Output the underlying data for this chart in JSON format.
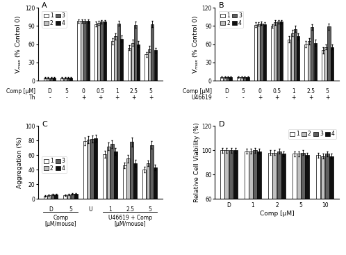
{
  "panel_A": {
    "title": "A",
    "ylabel": "V$_{max}$ (% Control 0)",
    "ylim": [
      0,
      120
    ],
    "yticks": [
      0,
      30,
      60,
      90,
      120
    ],
    "groups": [
      "D",
      "5",
      "0",
      "0.5",
      "1",
      "2.5",
      "5"
    ],
    "xlabel_top": "Comp [μM]",
    "xlabel_bot": "Th",
    "xlabel_bot_vals": [
      "-",
      "-",
      "+",
      "+",
      "+",
      "+",
      "+"
    ],
    "bar_data": [
      [
        5,
        5,
        98,
        93,
        65,
        54,
        43
      ],
      [
        5,
        5,
        98,
        95,
        73,
        62,
        52
      ],
      [
        5,
        5,
        98,
        97,
        94,
        92,
        93
      ],
      [
        5,
        5,
        98,
        97,
        69,
        60,
        50
      ]
    ],
    "bar_errors": [
      [
        1,
        1,
        3,
        4,
        5,
        4,
        4
      ],
      [
        1,
        1,
        3,
        3,
        5,
        5,
        5
      ],
      [
        1,
        1,
        3,
        3,
        4,
        5,
        5
      ],
      [
        1,
        1,
        3,
        3,
        5,
        5,
        4
      ]
    ]
  },
  "panel_B": {
    "title": "B",
    "ylabel": "V$_{max}$ (% Control 0)",
    "ylim": [
      0,
      120
    ],
    "yticks": [
      0,
      30,
      60,
      90,
      120
    ],
    "groups": [
      "D",
      "5",
      "0",
      "0.5",
      "1",
      "2.5",
      "5"
    ],
    "xlabel_top": "Comp [μM]",
    "xlabel_bot": "U46619",
    "xlabel_bot_vals": [
      "-",
      "-",
      "+",
      "+",
      "+",
      "+",
      "+"
    ],
    "bar_data": [
      [
        6,
        6,
        92,
        90,
        68,
        60,
        50
      ],
      [
        6,
        6,
        93,
        96,
        78,
        65,
        55
      ],
      [
        6,
        6,
        94,
        97,
        85,
        88,
        89
      ],
      [
        6,
        6,
        93,
        97,
        73,
        62,
        55
      ]
    ],
    "bar_errors": [
      [
        1,
        1,
        4,
        3,
        5,
        5,
        5
      ],
      [
        1,
        1,
        3,
        4,
        5,
        5,
        4
      ],
      [
        1,
        1,
        3,
        3,
        5,
        5,
        5
      ],
      [
        1,
        1,
        3,
        3,
        5,
        5,
        4
      ]
    ]
  },
  "panel_C": {
    "title": "C",
    "ylabel": "Aggregation (%)",
    "ylim": [
      0,
      100
    ],
    "yticks": [
      0,
      20,
      40,
      60,
      80,
      100
    ],
    "groups": [
      "D",
      "5",
      "U",
      "1",
      "2.5",
      "5"
    ],
    "bar_data": [
      [
        4,
        5,
        79,
        61,
        46,
        40
      ],
      [
        5,
        6,
        81,
        72,
        55,
        49
      ],
      [
        6,
        7,
        82,
        75,
        78,
        74
      ],
      [
        6,
        7,
        83,
        65,
        49,
        43
      ]
    ],
    "bar_errors": [
      [
        1,
        1,
        5,
        5,
        4,
        4
      ],
      [
        1,
        1,
        5,
        5,
        5,
        4
      ],
      [
        1,
        1,
        5,
        5,
        6,
        5
      ],
      [
        1,
        1,
        5,
        5,
        5,
        4
      ]
    ]
  },
  "panel_D": {
    "title": "D",
    "ylabel": "Relative Cell Viability (%)",
    "ylim": [
      60,
      120
    ],
    "yticks": [
      60,
      80,
      100,
      120
    ],
    "groups": [
      "D",
      "1",
      "2",
      "5",
      "10"
    ],
    "xlabel": "Comp [μM]",
    "bar_data": [
      [
        100,
        99,
        98,
        97,
        96
      ],
      [
        100,
        99,
        98,
        97,
        95
      ],
      [
        100,
        100,
        99,
        98,
        97
      ],
      [
        100,
        99,
        97,
        96,
        95
      ]
    ],
    "bar_errors": [
      [
        2,
        2,
        2,
        2,
        2
      ],
      [
        2,
        2,
        2,
        2,
        2
      ],
      [
        2,
        2,
        2,
        2,
        2
      ],
      [
        2,
        2,
        2,
        2,
        2
      ]
    ]
  },
  "colors": [
    "#ffffff",
    "#c0c0c0",
    "#606060",
    "#101010"
  ],
  "edge_color": "#000000",
  "bar_width": 0.18,
  "legend_labels": [
    "1",
    "2",
    "3",
    "4"
  ],
  "fontsize_label": 6.5,
  "fontsize_tick": 5.5,
  "fontsize_title": 8
}
